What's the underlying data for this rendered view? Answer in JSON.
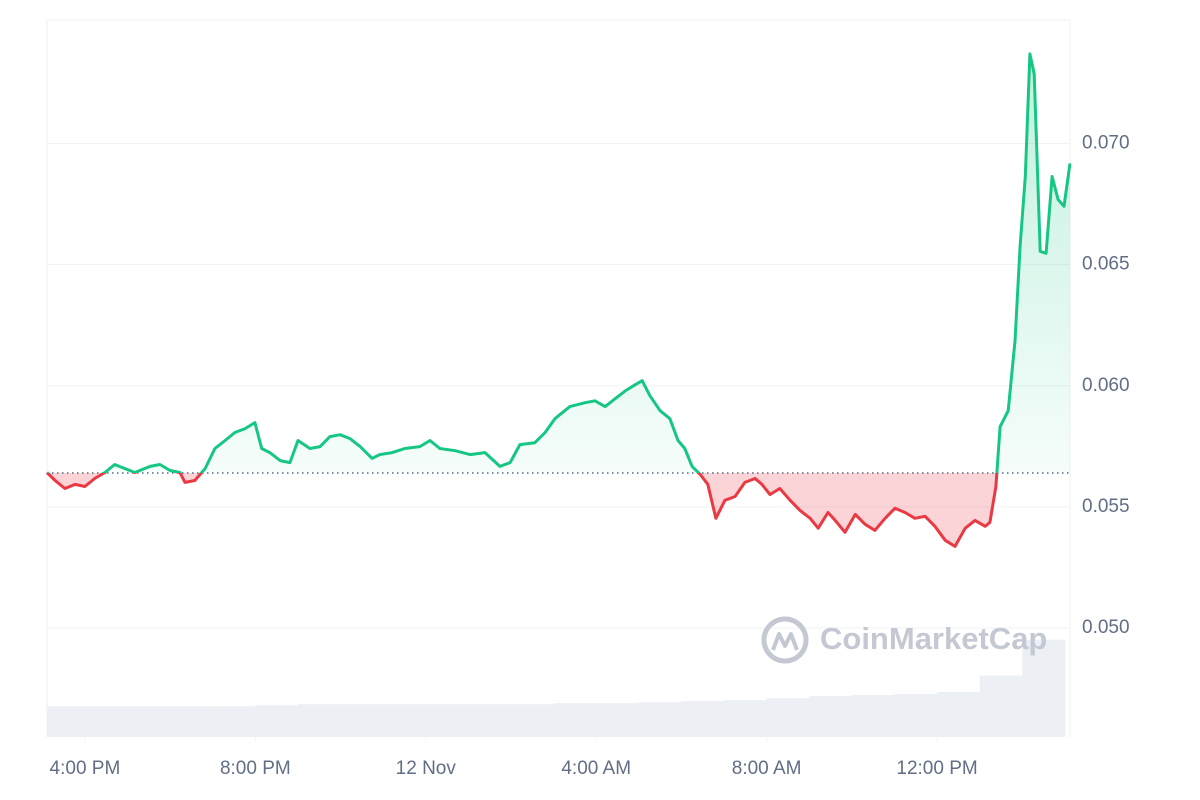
{
  "chart_data": {
    "type": "line",
    "x": [
      -8.89,
      -8.7,
      -8.47,
      -8.23,
      -8.0,
      -7.77,
      -7.53,
      -7.3,
      -7.06,
      -6.83,
      -6.47,
      -6.24,
      -6.0,
      -5.77,
      -5.65,
      -5.42,
      -5.18,
      -4.95,
      -4.71,
      -4.48,
      -4.24,
      -4.01,
      -3.85,
      -3.66,
      -3.42,
      -3.19,
      -3.0,
      -2.72,
      -2.48,
      -2.25,
      -2.01,
      -1.78,
      -1.54,
      -1.26,
      -1.08,
      -0.79,
      -0.49,
      -0.14,
      0.1,
      0.33,
      0.69,
      1.04,
      1.39,
      1.74,
      1.98,
      2.21,
      2.56,
      2.8,
      3.03,
      3.38,
      3.74,
      3.97,
      4.21,
      4.44,
      4.68,
      4.91,
      5.08,
      5.26,
      5.5,
      5.73,
      5.92,
      6.08,
      6.25,
      6.44,
      6.62,
      6.81,
      7.02,
      7.26,
      7.49,
      7.73,
      7.89,
      8.08,
      8.31,
      8.55,
      8.78,
      9.02,
      9.21,
      9.44,
      9.61,
      9.84,
      10.08,
      10.31,
      10.54,
      10.78,
      11.01,
      11.25,
      11.48,
      11.72,
      11.95,
      12.19,
      12.42,
      12.66,
      12.89,
      13.13,
      13.24,
      13.38,
      13.48,
      13.67,
      13.83,
      13.95,
      14.07,
      14.18,
      14.28,
      14.42,
      14.56,
      14.7,
      14.84,
      14.98,
      15.12
    ],
    "values": [
      0.05642,
      0.05609,
      0.05576,
      0.05593,
      0.05584,
      0.05617,
      0.05642,
      0.05675,
      0.05658,
      0.05642,
      0.05667,
      0.05675,
      0.0565,
      0.05642,
      0.05601,
      0.05609,
      0.05658,
      0.05741,
      0.05774,
      0.05807,
      0.05823,
      0.05848,
      0.05741,
      0.05724,
      0.05691,
      0.05683,
      0.05774,
      0.05741,
      0.05749,
      0.0579,
      0.05798,
      0.05782,
      0.05749,
      0.057,
      0.05716,
      0.05724,
      0.05741,
      0.05749,
      0.05774,
      0.05741,
      0.05732,
      0.05716,
      0.05724,
      0.05667,
      0.05683,
      0.05757,
      0.05765,
      0.05807,
      0.05864,
      0.05914,
      0.0593,
      0.05938,
      0.05914,
      0.05946,
      0.05979,
      0.06004,
      0.06021,
      0.05959,
      0.05897,
      0.05864,
      0.05774,
      0.05741,
      0.05667,
      0.05634,
      0.05593,
      0.05453,
      0.05527,
      0.05543,
      0.05601,
      0.05617,
      0.05593,
      0.05551,
      0.05576,
      0.05527,
      0.05486,
      0.05453,
      0.05412,
      0.05477,
      0.05444,
      0.05395,
      0.05469,
      0.05428,
      0.05403,
      0.05453,
      0.05494,
      0.05477,
      0.05453,
      0.05461,
      0.0542,
      0.05362,
      0.05337,
      0.05412,
      0.05444,
      0.0542,
      0.05436,
      0.05584,
      0.05831,
      0.05897,
      0.06185,
      0.06576,
      0.06864,
      0.0737,
      0.07288,
      0.06555,
      0.06547,
      0.06864,
      0.06769,
      0.06741,
      0.06918
    ],
    "baseline": 0.0564,
    "color_up": "#16c784",
    "color_down": "#ea3943",
    "xlim": [
      -8.89,
      15.12
    ],
    "xticks": [
      {
        "value": -8,
        "label": "4:00 PM"
      },
      {
        "value": -4,
        "label": "8:00 PM"
      },
      {
        "value": 0,
        "label": "12 Nov"
      },
      {
        "value": 4,
        "label": "4:00 AM"
      },
      {
        "value": 8,
        "label": "8:00 AM"
      },
      {
        "value": 12,
        "label": "12:00 PM"
      }
    ],
    "ylim": [
      0.0455,
      0.0751
    ],
    "yticks": [
      {
        "value": 0.05,
        "label": "0.050"
      },
      0.055,
      {
        "value": 0.06,
        "label": "0.060"
      },
      0.065,
      {
        "value": 0.07,
        "label": "0.070"
      }
    ],
    "grid": true,
    "volume": {
      "x": [
        -8.5,
        -7.5,
        -6.5,
        -5.5,
        -4.5,
        -3.5,
        -2.5,
        -1.5,
        -0.5,
        0.5,
        1.5,
        2.5,
        3.5,
        4.5,
        5.5,
        6.5,
        7.5,
        8.5,
        9.5,
        10.5,
        11.5,
        12.5,
        13.5,
        14.5
      ],
      "values": [
        30,
        30,
        30,
        30,
        30,
        31,
        32,
        32,
        32,
        32,
        32,
        32,
        33,
        33,
        34,
        35,
        36,
        38,
        40,
        41,
        42,
        44,
        60,
        95
      ],
      "ylim": [
        0,
        700
      ],
      "color": "#eceff4"
    },
    "watermark": "CoinMarketCap"
  }
}
